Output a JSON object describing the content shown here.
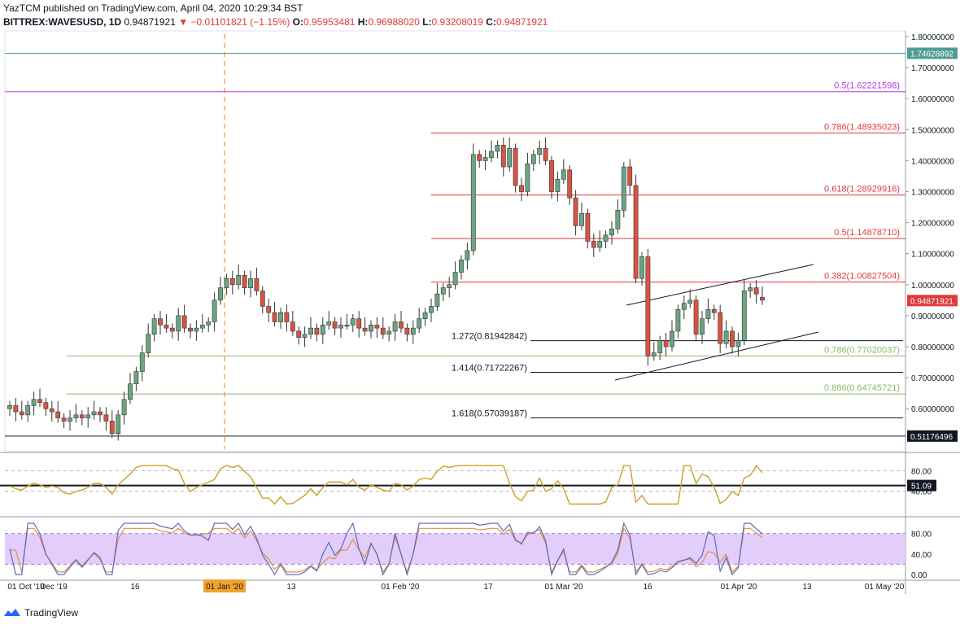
{
  "header": {
    "published": "YazTCM published on TradingView.com, April 04, 2020 10:29:34 BST",
    "symbol": "BITTREX:WAVESUSD, 1D",
    "last": "0.94871921",
    "change": "−0.01101821 (−1.15%)",
    "o_label": "O:",
    "o": "0.95953481",
    "h_label": "H:",
    "h": "0.96988020",
    "l_label": "L:",
    "l": "0.93208019",
    "c_label": "C:",
    "c": "0.94871921"
  },
  "footer": {
    "brand": "TradingView"
  },
  "colors": {
    "up": "#6ba583",
    "down": "#d75442",
    "fib_red": "#e03a3a",
    "fib_green": "#8ab86a",
    "purple": "#b238e6",
    "teal": "#4f9c96",
    "rsi": "#c9a227",
    "stoch_k": "#5c6bc0",
    "stoch_d": "#e0913a",
    "band": "#e3cdfb"
  },
  "chart_data": [
    {
      "type": "candlestick",
      "symbol": "BITTREX:WAVESUSD",
      "interval": "1D",
      "ylim": [
        0.5,
        1.8
      ],
      "y_ticks": [
        "1.80000000",
        "1.70000000",
        "1.60000000",
        "1.50000000",
        "1.40000000",
        "1.30000000",
        "1.20000000",
        "1.10000000",
        "1.00000000",
        "0.90000000",
        "0.80000000",
        "0.70000000",
        "0.60000000"
      ],
      "x_ticks": [
        "01 Oct '19",
        "Dec '19",
        "16",
        "01 Jan '20",
        "13",
        "01 Feb '20",
        "17",
        "01 Mar '20",
        "16",
        "01 Apr '20",
        "13",
        "01 May '20"
      ],
      "highlight_tick": "01 Jan '20",
      "horizontal_levels": [
        {
          "label": "0.5(1.62221598)",
          "value": 1.62221598,
          "color": "#b238e6"
        },
        {
          "label": "0.786(1.48935023)",
          "value": 1.48935023,
          "color": "#e03a3a"
        },
        {
          "label": "0.618(1.28929916)",
          "value": 1.28929916,
          "color": "#e03a3a"
        },
        {
          "label": "0.5(1.14878710)",
          "value": 1.1487871,
          "color": "#e03a3a"
        },
        {
          "label": "0.382(1.00827504)",
          "value": 1.00827504,
          "color": "#e03a3a"
        },
        {
          "label": "0.786(0.77020037)",
          "value": 0.77020037,
          "color": "#8ab86a"
        },
        {
          "label": "0.886(0.64745721)",
          "value": 0.64745721,
          "color": "#8ab86a"
        }
      ],
      "extension_levels": [
        {
          "label": "1.272(0.81942842)",
          "value": 0.81942842
        },
        {
          "label": "1.414(0.71722267)",
          "value": 0.71722267
        },
        {
          "label": "1.618(0.57039187)",
          "value": 0.57039187
        }
      ],
      "price_labels": [
        {
          "label": "1.74628892",
          "value": 1.74628892
        },
        {
          "label": "0.94871921",
          "value": 0.94871921
        },
        {
          "label": "0.51176496",
          "value": 0.51176496
        }
      ],
      "closes": [
        0.61,
        0.59,
        0.58,
        0.61,
        0.63,
        0.62,
        0.6,
        0.59,
        0.57,
        0.56,
        0.57,
        0.58,
        0.57,
        0.58,
        0.59,
        0.58,
        0.56,
        0.52,
        0.58,
        0.63,
        0.68,
        0.72,
        0.78,
        0.84,
        0.89,
        0.87,
        0.86,
        0.85,
        0.9,
        0.86,
        0.85,
        0.86,
        0.87,
        0.88,
        0.95,
        0.99,
        1.02,
        1.0,
        1.03,
        0.99,
        1.02,
        0.98,
        0.93,
        0.91,
        0.88,
        0.91,
        0.88,
        0.85,
        0.83,
        0.84,
        0.86,
        0.84,
        0.87,
        0.88,
        0.86,
        0.87,
        0.87,
        0.89,
        0.86,
        0.85,
        0.87,
        0.86,
        0.84,
        0.85,
        0.88,
        0.86,
        0.84,
        0.86,
        0.89,
        0.91,
        0.93,
        0.97,
        0.99,
        1.0,
        1.04,
        1.08,
        1.11,
        1.42,
        1.4,
        1.41,
        1.43,
        1.45,
        1.38,
        1.44,
        1.32,
        1.3,
        1.39,
        1.42,
        1.44,
        1.4,
        1.3,
        1.34,
        1.37,
        1.28,
        1.19,
        1.23,
        1.14,
        1.12,
        1.14,
        1.16,
        1.18,
        1.24,
        1.38,
        1.32,
        1.02,
        1.09,
        0.77,
        0.78,
        0.82,
        0.8,
        0.85,
        0.92,
        0.94,
        0.95,
        0.84,
        0.89,
        0.92,
        0.91,
        0.81,
        0.85,
        0.8,
        0.82,
        0.98,
        0.99,
        0.97,
        0.95
      ],
      "ohlc_last": {
        "o": 0.95953481,
        "h": 0.9698802,
        "l": 0.93208019,
        "c": 0.94871921
      }
    },
    {
      "type": "line",
      "name": "RSI",
      "ylim": [
        0,
        100
      ],
      "y_ticks": [
        "80.00",
        "40.00"
      ],
      "level_label": "51.09",
      "level": 51.09
    },
    {
      "type": "line",
      "name": "Stochastic RSI",
      "ylim": [
        0,
        100
      ],
      "y_ticks": [
        "80.00",
        "40.00",
        "0.00"
      ],
      "band": [
        20,
        80
      ]
    }
  ]
}
